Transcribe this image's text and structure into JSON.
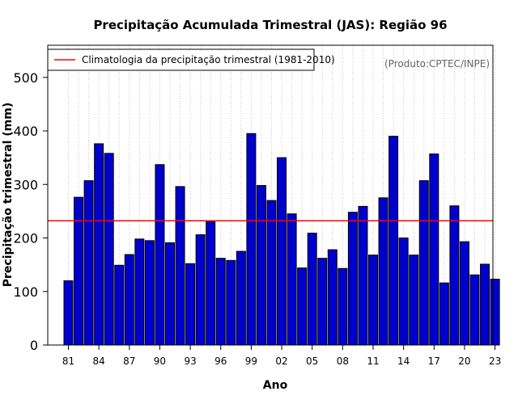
{
  "chart_data": {
    "type": "bar",
    "title": "Precipitação Acumulada Trimestral (JAS): Região 96",
    "xlabel": "Ano",
    "ylabel": "Precipitação trimestral (mm)",
    "credit": "(Produto:CPTEC/INPE)",
    "ylim": [
      0,
      560
    ],
    "yticks": [
      0,
      100,
      200,
      300,
      400,
      500
    ],
    "categories": [
      "81",
      "82",
      "83",
      "84",
      "85",
      "86",
      "87",
      "88",
      "89",
      "90",
      "91",
      "92",
      "93",
      "94",
      "95",
      "96",
      "97",
      "98",
      "99",
      "00",
      "01",
      "02",
      "03",
      "04",
      "05",
      "06",
      "07",
      "08",
      "09",
      "10",
      "11",
      "12",
      "13",
      "14",
      "15",
      "16",
      "17",
      "18",
      "19",
      "20",
      "21",
      "22",
      "23"
    ],
    "xtick_labels": [
      "81",
      "84",
      "87",
      "90",
      "93",
      "96",
      "99",
      "02",
      "05",
      "08",
      "11",
      "14",
      "17",
      "20",
      "23"
    ],
    "values": [
      120,
      276,
      307,
      376,
      358,
      149,
      169,
      198,
      195,
      337,
      191,
      296,
      152,
      206,
      231,
      162,
      158,
      175,
      395,
      298,
      270,
      350,
      245,
      144,
      209,
      162,
      178,
      143,
      248,
      259,
      168,
      275,
      390,
      200,
      168,
      307,
      357,
      116,
      260,
      193,
      131,
      151,
      123
    ],
    "bar_color": "#0000cd",
    "grid": "vertical dotted",
    "reference_line": {
      "label": "Climatologia da precipitação trimestral (1981-2010)",
      "value": 232,
      "color": "#ff0000"
    },
    "legend_position": "top-left",
    "credit_position": "top-right"
  }
}
